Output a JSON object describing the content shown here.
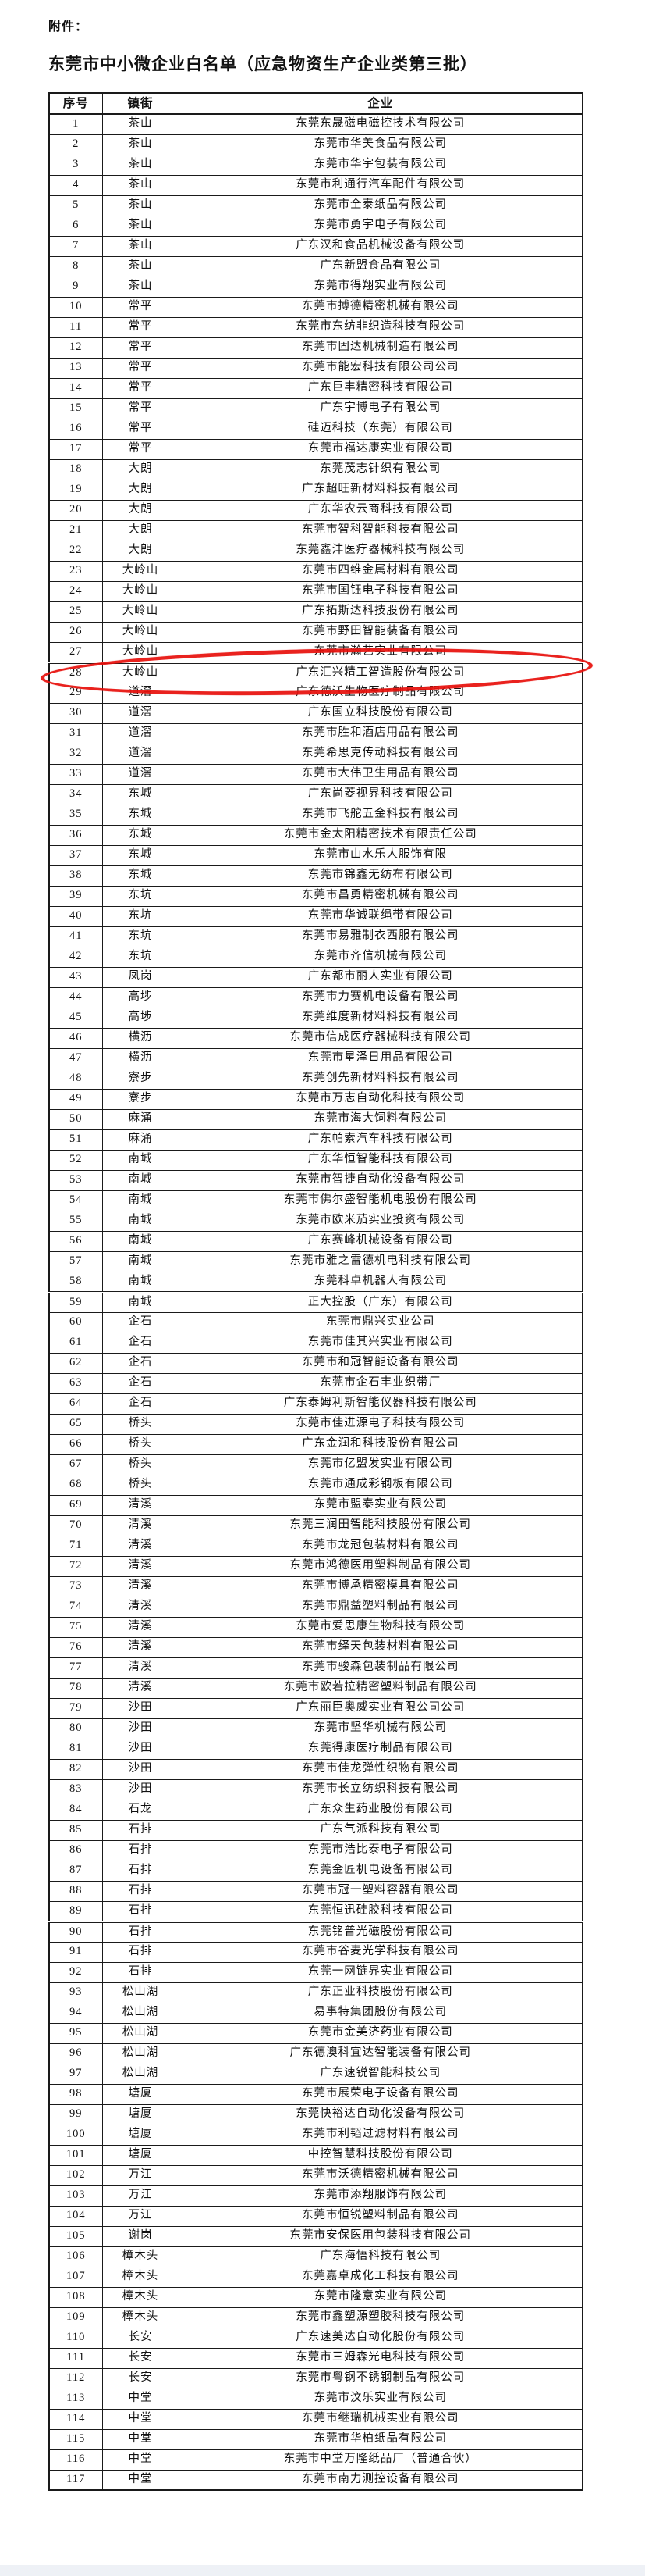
{
  "attachment_label": "附件：",
  "title": "东莞市中小微企业白名单（应急物资生产企业类第三批）",
  "highlight": {
    "row_no": 28,
    "color": "#e8100c",
    "shape": "hand-drawn-ellipse"
  },
  "page_break_rows": [
    28,
    59,
    90
  ],
  "table": {
    "headers": [
      "序号",
      "镇街",
      "企业"
    ],
    "rows": [
      {
        "no": 1,
        "town": "茶山",
        "company": "东莞东晟磁电磁控技术有限公司"
      },
      {
        "no": 2,
        "town": "茶山",
        "company": "东莞市华美食品有限公司"
      },
      {
        "no": 3,
        "town": "茶山",
        "company": "东莞市华宇包装有限公司"
      },
      {
        "no": 4,
        "town": "茶山",
        "company": "东莞市利通行汽车配件有限公司"
      },
      {
        "no": 5,
        "town": "茶山",
        "company": "东莞市全泰纸品有限公司"
      },
      {
        "no": 6,
        "town": "茶山",
        "company": "东莞市勇宇电子有限公司"
      },
      {
        "no": 7,
        "town": "茶山",
        "company": "广东汉和食品机械设备有限公司"
      },
      {
        "no": 8,
        "town": "茶山",
        "company": "广东新盟食品有限公司"
      },
      {
        "no": 9,
        "town": "茶山",
        "company": "东莞市得翔实业有限公司"
      },
      {
        "no": 10,
        "town": "常平",
        "company": "东莞市搏德精密机械有限公司"
      },
      {
        "no": 11,
        "town": "常平",
        "company": "东莞市东纺非织造科技有限公司"
      },
      {
        "no": 12,
        "town": "常平",
        "company": "东莞市固达机械制造有限公司"
      },
      {
        "no": 13,
        "town": "常平",
        "company": "东莞市能宏科技有限公司公司"
      },
      {
        "no": 14,
        "town": "常平",
        "company": "广东巨丰精密科技有限公司"
      },
      {
        "no": 15,
        "town": "常平",
        "company": "广东宇博电子有限公司"
      },
      {
        "no": 16,
        "town": "常平",
        "company": "硅迈科技（东莞）有限公司"
      },
      {
        "no": 17,
        "town": "常平",
        "company": "东莞市福达康实业有限公司"
      },
      {
        "no": 18,
        "town": "大朗",
        "company": "东莞茂志针织有限公司"
      },
      {
        "no": 19,
        "town": "大朗",
        "company": "广东超旺新材料科技有限公司"
      },
      {
        "no": 20,
        "town": "大朗",
        "company": "广东华农云商科技有限公司"
      },
      {
        "no": 21,
        "town": "大朗",
        "company": "东莞市智科智能科技有限公司"
      },
      {
        "no": 22,
        "town": "大朗",
        "company": "东莞鑫沣医疗器械科技有限公司"
      },
      {
        "no": 23,
        "town": "大岭山",
        "company": "东莞市四维金属材料有限公司"
      },
      {
        "no": 24,
        "town": "大岭山",
        "company": "东莞市国钰电子科技有限公司"
      },
      {
        "no": 25,
        "town": "大岭山",
        "company": "广东拓斯达科技股份有限公司"
      },
      {
        "no": 26,
        "town": "大岭山",
        "company": "东莞市野田智能装备有限公司"
      },
      {
        "no": 27,
        "town": "大岭山",
        "company": "东莞市瀚艺实业有限公司"
      },
      {
        "no": 28,
        "town": "大岭山",
        "company": "广东汇兴精工智造股份有限公司"
      },
      {
        "no": 29,
        "town": "道滘",
        "company": "广东德沃生物医疗制品有限公司"
      },
      {
        "no": 30,
        "town": "道滘",
        "company": "广东国立科技股份有限公司"
      },
      {
        "no": 31,
        "town": "道滘",
        "company": "东莞市胜和酒店用品有限公司"
      },
      {
        "no": 32,
        "town": "道滘",
        "company": "东莞希思克传动科技有限公司"
      },
      {
        "no": 33,
        "town": "道滘",
        "company": "东莞市大伟卫生用品有限公司"
      },
      {
        "no": 34,
        "town": "东城",
        "company": "广东尚菱视界科技有限公司"
      },
      {
        "no": 35,
        "town": "东城",
        "company": "东莞市飞舵五金科技有限公司"
      },
      {
        "no": 36,
        "town": "东城",
        "company": "东莞市金太阳精密技术有限责任公司"
      },
      {
        "no": 37,
        "town": "东城",
        "company": "东莞市山水乐人服饰有限"
      },
      {
        "no": 38,
        "town": "东城",
        "company": "东莞市锦鑫无纺布有限公司"
      },
      {
        "no": 39,
        "town": "东坑",
        "company": "东莞市昌勇精密机械有限公司"
      },
      {
        "no": 40,
        "town": "东坑",
        "company": "东莞市华诚联绳带有限公司"
      },
      {
        "no": 41,
        "town": "东坑",
        "company": "东莞市易雅制衣西服有限公司"
      },
      {
        "no": 42,
        "town": "东坑",
        "company": "东莞市齐信机械有限公司"
      },
      {
        "no": 43,
        "town": "凤岗",
        "company": "广东都市丽人实业有限公司"
      },
      {
        "no": 44,
        "town": "高埗",
        "company": "东莞市力赛机电设备有限公司"
      },
      {
        "no": 45,
        "town": "高埗",
        "company": "东莞维度新材料科技有限公司"
      },
      {
        "no": 46,
        "town": "横沥",
        "company": "东莞市信成医疗器械科技有限公司"
      },
      {
        "no": 47,
        "town": "横沥",
        "company": "东莞市星泽日用品有限公司"
      },
      {
        "no": 48,
        "town": "寮步",
        "company": "东莞创先新材料科技有限公司"
      },
      {
        "no": 49,
        "town": "寮步",
        "company": "东莞市万志自动化科技有限公司"
      },
      {
        "no": 50,
        "town": "麻涌",
        "company": "东莞市海大饲料有限公司"
      },
      {
        "no": 51,
        "town": "麻涌",
        "company": "广东帕索汽车科技有限公司"
      },
      {
        "no": 52,
        "town": "南城",
        "company": "广东华恒智能科技有限公司"
      },
      {
        "no": 53,
        "town": "南城",
        "company": "东莞市智捷自动化设备有限公司"
      },
      {
        "no": 54,
        "town": "南城",
        "company": "东莞市佛尔盛智能机电股份有限公司"
      },
      {
        "no": 55,
        "town": "南城",
        "company": "东莞市欧米茄实业投资有限公司"
      },
      {
        "no": 56,
        "town": "南城",
        "company": "广东赛峰机械设备有限公司"
      },
      {
        "no": 57,
        "town": "南城",
        "company": "东莞市雅之雷德机电科技有限公司"
      },
      {
        "no": 58,
        "town": "南城",
        "company": "东莞科卓机器人有限公司"
      },
      {
        "no": 59,
        "town": "南城",
        "company": "正大控股（广东）有限公司"
      },
      {
        "no": 60,
        "town": "企石",
        "company": "东莞市鼎兴实业公司"
      },
      {
        "no": 61,
        "town": "企石",
        "company": "东莞市佳其兴实业有限公司"
      },
      {
        "no": 62,
        "town": "企石",
        "company": "东莞市和冠智能设备有限公司"
      },
      {
        "no": 63,
        "town": "企石",
        "company": "东莞市企石丰业织带厂"
      },
      {
        "no": 64,
        "town": "企石",
        "company": "广东泰姆利斯智能仪器科技有限公司"
      },
      {
        "no": 65,
        "town": "桥头",
        "company": "东莞市佳进源电子科技有限公司"
      },
      {
        "no": 66,
        "town": "桥头",
        "company": "广东金润和科技股份有限公司"
      },
      {
        "no": 67,
        "town": "桥头",
        "company": "东莞市亿盟发实业有限公司"
      },
      {
        "no": 68,
        "town": "桥头",
        "company": "东莞市通成彩钢板有限公司"
      },
      {
        "no": 69,
        "town": "清溪",
        "company": "东莞市盟泰实业有限公司"
      },
      {
        "no": 70,
        "town": "清溪",
        "company": "东莞三润田智能科技股份有限公司"
      },
      {
        "no": 71,
        "town": "清溪",
        "company": "东莞市龙冠包装材料有限公司"
      },
      {
        "no": 72,
        "town": "清溪",
        "company": "东莞市鸿德医用塑料制品有限公司"
      },
      {
        "no": 73,
        "town": "清溪",
        "company": "东莞市博承精密模具有限公司"
      },
      {
        "no": 74,
        "town": "清溪",
        "company": "东莞市鼎益塑料制品有限公司"
      },
      {
        "no": 75,
        "town": "清溪",
        "company": "东莞市爱思康生物科技有限公司"
      },
      {
        "no": 76,
        "town": "清溪",
        "company": "东莞市绎天包装材料有限公司"
      },
      {
        "no": 77,
        "town": "清溪",
        "company": "东莞市骏森包装制品有限公司"
      },
      {
        "no": 78,
        "town": "清溪",
        "company": "东莞市欧若拉精密塑料制品有限公司"
      },
      {
        "no": 79,
        "town": "沙田",
        "company": "广东丽臣奥威实业有限公司公司"
      },
      {
        "no": 80,
        "town": "沙田",
        "company": "东莞市坚华机械有限公司"
      },
      {
        "no": 81,
        "town": "沙田",
        "company": "东莞得康医疗制品有限公司"
      },
      {
        "no": 82,
        "town": "沙田",
        "company": "东莞市佳龙弹性织物有限公司"
      },
      {
        "no": 83,
        "town": "沙田",
        "company": "东莞市长立纺织科技有限公司"
      },
      {
        "no": 84,
        "town": "石龙",
        "company": "广东众生药业股份有限公司"
      },
      {
        "no": 85,
        "town": "石排",
        "company": "广东气派科技有限公司"
      },
      {
        "no": 86,
        "town": "石排",
        "company": "东莞市浩比泰电子有限公司"
      },
      {
        "no": 87,
        "town": "石排",
        "company": "东莞金匠机电设备有限公司"
      },
      {
        "no": 88,
        "town": "石排",
        "company": "东莞市冠一塑料容器有限公司"
      },
      {
        "no": 89,
        "town": "石排",
        "company": "东莞恒迅硅胶科技有限公司"
      },
      {
        "no": 90,
        "town": "石排",
        "company": "东莞铭普光磁股份有限公司"
      },
      {
        "no": 91,
        "town": "石排",
        "company": "东莞市谷麦光学科技有限公司"
      },
      {
        "no": 92,
        "town": "石排",
        "company": "东莞一网链界实业有限公司"
      },
      {
        "no": 93,
        "town": "松山湖",
        "company": "广东正业科技股份有限公司"
      },
      {
        "no": 94,
        "town": "松山湖",
        "company": "易事特集团股份有限公司"
      },
      {
        "no": 95,
        "town": "松山湖",
        "company": "东莞市金美济药业有限公司"
      },
      {
        "no": 96,
        "town": "松山湖",
        "company": "广东德澳科宜达智能装备有限公司"
      },
      {
        "no": 97,
        "town": "松山湖",
        "company": "广东速锐智能科技公司"
      },
      {
        "no": 98,
        "town": "塘厦",
        "company": "东莞市展荣电子设备有限公司"
      },
      {
        "no": 99,
        "town": "塘厦",
        "company": "东莞快裕达自动化设备有限公司"
      },
      {
        "no": 100,
        "town": "塘厦",
        "company": "东莞市利韬过滤材料有限公司"
      },
      {
        "no": 101,
        "town": "塘厦",
        "company": "中控智慧科技股份有限公司"
      },
      {
        "no": 102,
        "town": "万江",
        "company": "东莞市沃德精密机械有限公司"
      },
      {
        "no": 103,
        "town": "万江",
        "company": "东莞市添翔服饰有限公司"
      },
      {
        "no": 104,
        "town": "万江",
        "company": "东莞市恒锐塑料制品有限公司"
      },
      {
        "no": 105,
        "town": "谢岗",
        "company": "东莞市安保医用包装科技有限公司"
      },
      {
        "no": 106,
        "town": "樟木头",
        "company": "广东海悟科技有限公司"
      },
      {
        "no": 107,
        "town": "樟木头",
        "company": "东莞嘉卓成化工科技有限公司"
      },
      {
        "no": 108,
        "town": "樟木头",
        "company": "东莞市隆意实业有限公司"
      },
      {
        "no": 109,
        "town": "樟木头",
        "company": "东莞市鑫塑源塑胶科技有限公司"
      },
      {
        "no": 110,
        "town": "长安",
        "company": "广东速美达自动化股份有限公司"
      },
      {
        "no": 111,
        "town": "长安",
        "company": "东莞市三姆森光电科技有限公司"
      },
      {
        "no": 112,
        "town": "长安",
        "company": "东莞市粤钢不锈钢制品有限公司"
      },
      {
        "no": 113,
        "town": "中堂",
        "company": "东莞市汶乐实业有限公司"
      },
      {
        "no": 114,
        "town": "中堂",
        "company": "东莞市继瑞机械实业有限公司"
      },
      {
        "no": 115,
        "town": "中堂",
        "company": "东莞市华柏纸品有限公司"
      },
      {
        "no": 116,
        "town": "中堂",
        "company": "东莞市中堂万隆纸品厂（普通合伙）"
      },
      {
        "no": 117,
        "town": "中堂",
        "company": "东莞市南力测控设备有限公司"
      }
    ]
  }
}
